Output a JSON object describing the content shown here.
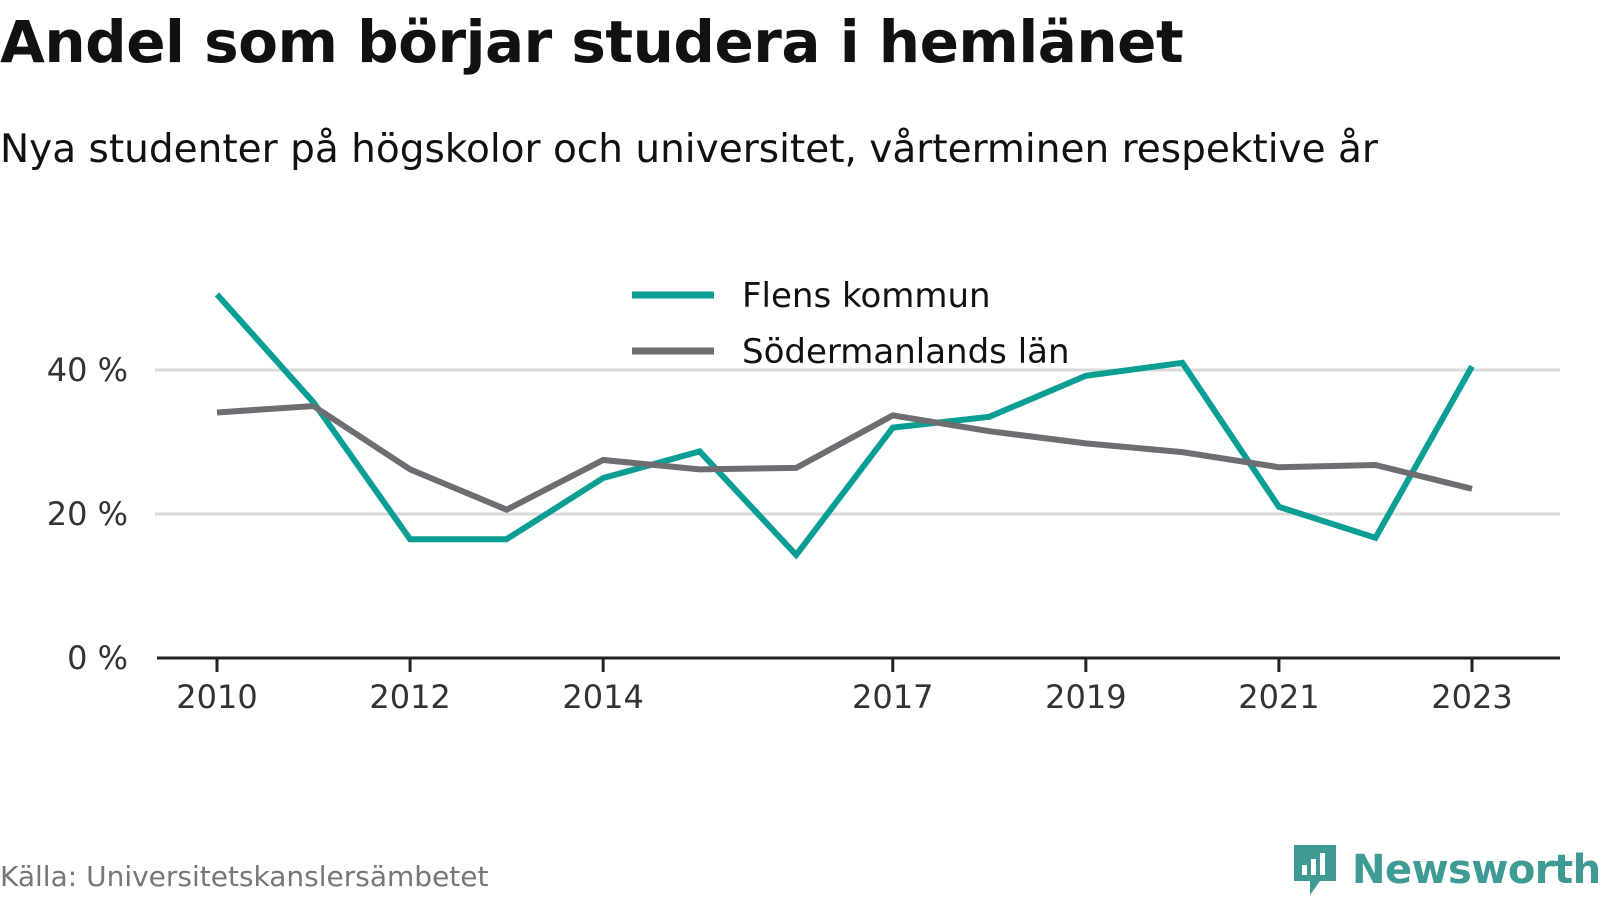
{
  "title": "Andel som börjar studera i hemlänet",
  "subtitle": "Nya studenter på högskolor och universitet, vårterminen respektive år",
  "source": "Källa: Universitetskanslersämbetet",
  "brand": {
    "name": "Newsworthy",
    "icon": "newsworthy-logo-icon",
    "color": "#3e9a92"
  },
  "colors": {
    "flen": "#0a9e94",
    "sodermanland": "#6e6d72",
    "grid": "#d9d9d9",
    "axis": "#222222"
  },
  "chart_data": {
    "type": "line",
    "x": [
      2010,
      2011,
      2012,
      2013,
      2014,
      2015,
      2016,
      2017,
      2018,
      2019,
      2020,
      2021,
      2022,
      2023
    ],
    "x_tick_labels": [
      "2010",
      "2012",
      "2014",
      "2017",
      "2019",
      "2021",
      "2023"
    ],
    "y_tick_labels": [
      "0 %",
      "20 %",
      "40 %"
    ],
    "y_ticks": [
      0,
      20,
      40
    ],
    "ylim": [
      0,
      50
    ],
    "grid": true,
    "legend_position": "top-center",
    "series": [
      {
        "name": "Flens kommun",
        "color": "#0a9e94",
        "values": [
          50.5,
          35.5,
          16.5,
          16.5,
          25.0,
          28.7,
          14.3,
          32.0,
          33.5,
          39.2,
          41.0,
          21.0,
          16.7,
          40.5
        ]
      },
      {
        "name": "Södermanlands län",
        "color": "#6e6d72",
        "values": [
          34.1,
          35.0,
          26.2,
          20.6,
          27.5,
          26.2,
          26.4,
          33.7,
          31.5,
          29.8,
          28.6,
          26.5,
          26.8,
          23.5
        ]
      }
    ]
  }
}
